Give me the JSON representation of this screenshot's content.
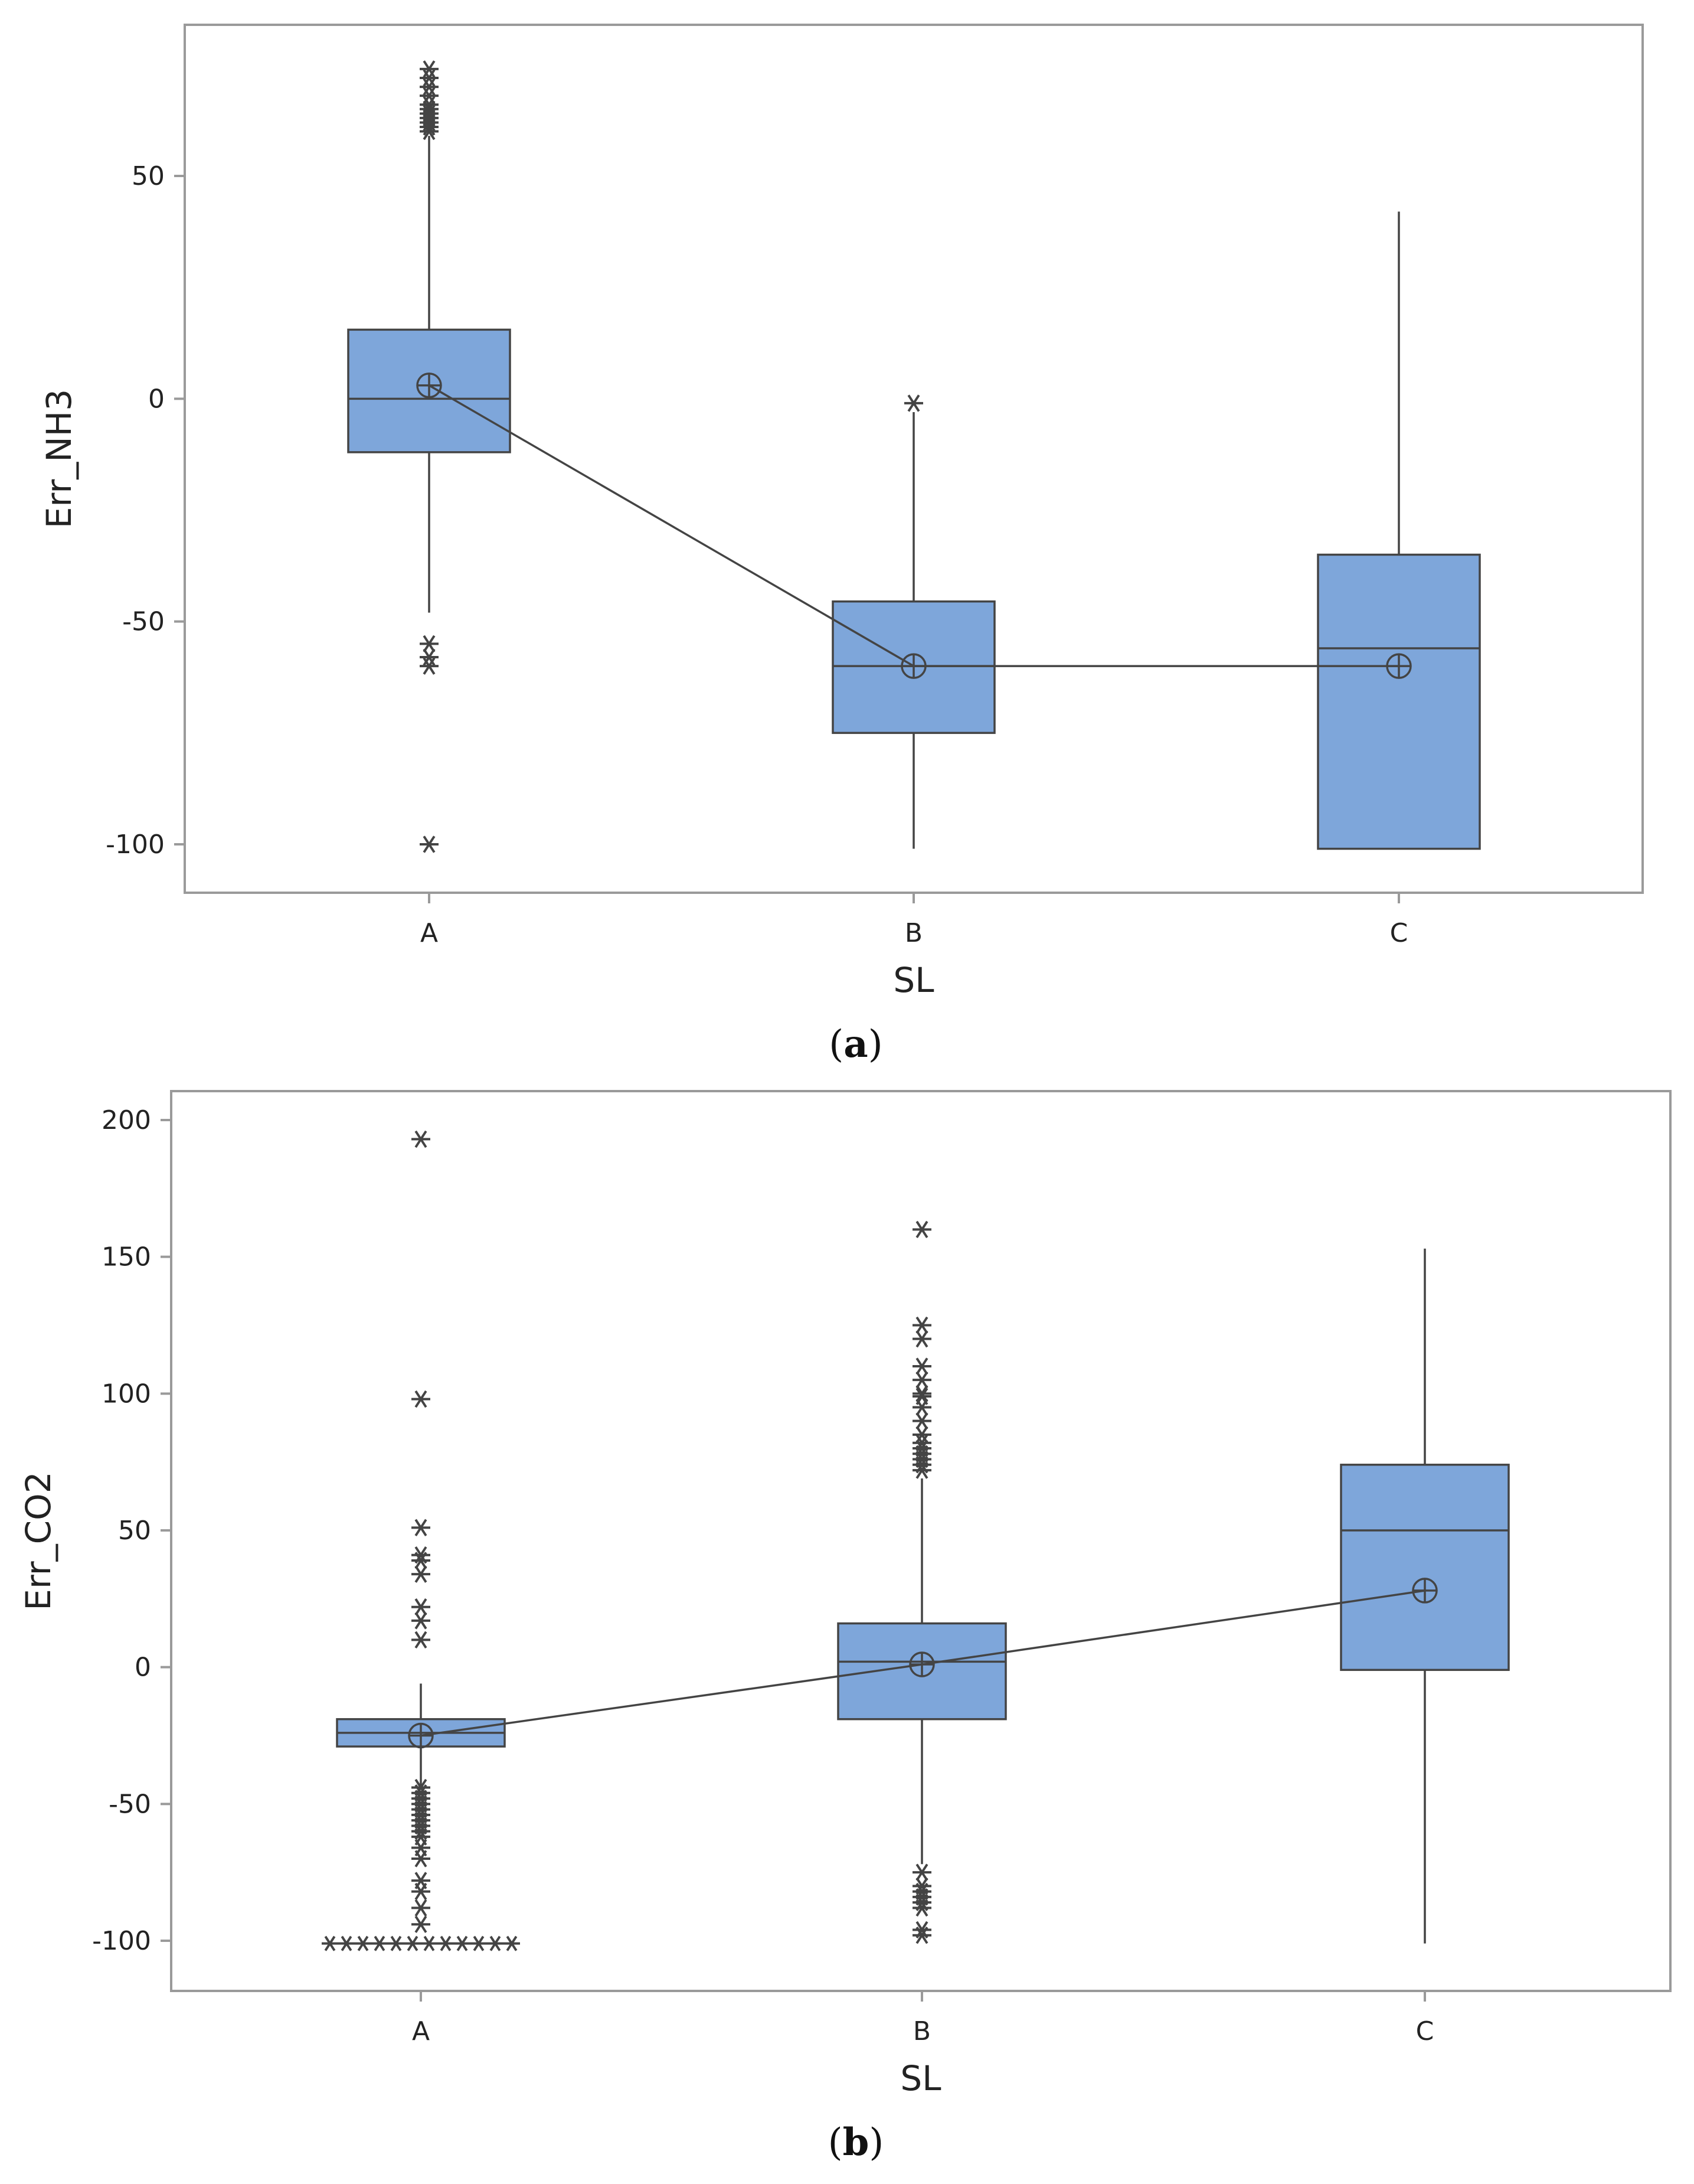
{
  "chart_data": [
    {
      "type": "box",
      "panel": "(a)",
      "panel_letter": "a",
      "xlabel": "SL",
      "ylabel": "Err_NH3",
      "categories": [
        "A",
        "B",
        "C"
      ],
      "ylim": [
        -110,
        85
      ],
      "yticks": [
        50,
        0,
        -50,
        -100
      ],
      "ytick_labels": [
        "50",
        "0",
        "-50",
        "-100"
      ],
      "boxes": [
        {
          "category": "A",
          "q1": -12,
          "median": 0,
          "q3": 15.5,
          "whisker_low": -48,
          "whisker_high": 59,
          "mean": 3,
          "outliers": [
            74,
            72,
            70,
            68,
            66,
            65,
            64,
            63,
            62,
            61,
            60,
            -55,
            -58,
            -60,
            -100
          ]
        },
        {
          "category": "B",
          "q1": -75,
          "median": -60,
          "q3": -45.5,
          "whisker_low": -101,
          "whisker_high": -3,
          "mean": -60,
          "outliers": [
            -1
          ]
        },
        {
          "category": "C",
          "q1": -101,
          "median": -56,
          "q3": -35,
          "whisker_low": -101,
          "whisker_high": 42,
          "mean": -60,
          "outliers": []
        }
      ]
    },
    {
      "type": "box",
      "panel": "(b)",
      "panel_letter": "b",
      "xlabel": "SL",
      "ylabel": "Err_CO2",
      "categories": [
        "A",
        "B",
        "C"
      ],
      "ylim": [
        -118,
        212
      ],
      "yticks": [
        200,
        150,
        100,
        50,
        0,
        -50,
        -100
      ],
      "ytick_labels": [
        "200",
        "150",
        "100",
        "50",
        "0",
        "-50",
        "-100"
      ],
      "boxes": [
        {
          "category": "A",
          "q1": -29,
          "median": -24,
          "q3": -19,
          "whisker_low": -44,
          "whisker_high": -6,
          "mean": -25,
          "outliers": [
            193,
            98,
            51,
            41,
            39,
            34,
            22,
            17,
            10,
            -44,
            -46,
            -48,
            -50,
            -52,
            -54,
            -56,
            -58,
            -60,
            -62,
            -66,
            -70,
            -78,
            -82,
            -88,
            -94
          ],
          "outliers_row": {
            "y": -101,
            "count": 12
          }
        },
        {
          "category": "B",
          "q1": -19,
          "median": 2,
          "q3": 16,
          "whisker_low": -72,
          "whisker_high": 69,
          "mean": 1,
          "outliers": [
            160,
            125,
            120,
            110,
            105,
            100,
            99,
            95,
            90,
            85,
            82,
            80,
            78,
            76,
            74,
            72,
            -75,
            -80,
            -82,
            -84,
            -86,
            -88,
            -96,
            -98
          ]
        },
        {
          "category": "C",
          "q1": -1,
          "median": 50,
          "q3": 74,
          "whisker_low": -101,
          "whisker_high": 153,
          "mean": 28,
          "outliers": []
        }
      ]
    }
  ]
}
